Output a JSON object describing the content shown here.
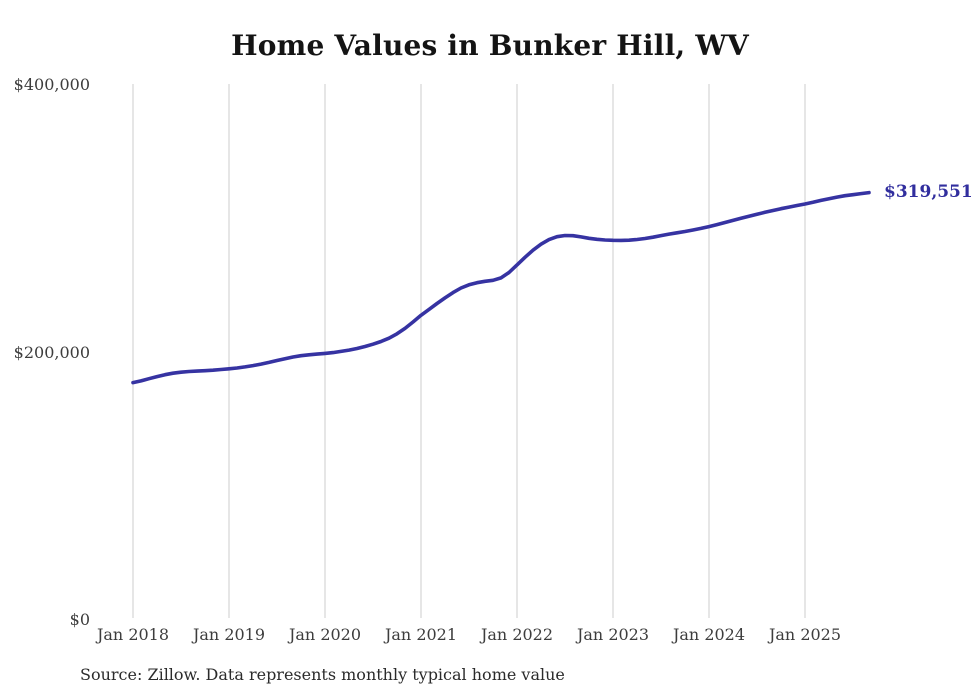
{
  "title": "Home Values in Bunker Hill, WV",
  "source_note": "Source: Zillow. Data represents monthly typical home value",
  "colors": {
    "line": "#3633a2",
    "end_label": "#312e9e",
    "grid": "#cdcdcd",
    "axis_text": "#3d3d3d",
    "title_text": "#141414"
  },
  "chart_data": {
    "type": "line",
    "title": "Home Values in Bunker Hill, WV",
    "xlabel": "",
    "ylabel": "",
    "ylim": [
      0,
      400000
    ],
    "grid": "vertical-only",
    "legend": "none",
    "start_month": "2018-01",
    "end_month": "2025-09",
    "last_value_label": "$319,551",
    "last_value": 319551,
    "y_ticks": [
      {
        "label": "$0",
        "value": 0
      },
      {
        "label": "$200,000",
        "value": 200000
      },
      {
        "label": "$400,000",
        "value": 400000
      }
    ],
    "x_ticks": [
      {
        "label": "Jan 2018",
        "month_index": 0
      },
      {
        "label": "Jan 2019",
        "month_index": 12
      },
      {
        "label": "Jan 2020",
        "month_index": 24
      },
      {
        "label": "Jan 2021",
        "month_index": 36
      },
      {
        "label": "Jan 2022",
        "month_index": 48
      },
      {
        "label": "Jan 2023",
        "month_index": 60
      },
      {
        "label": "Jan 2024",
        "month_index": 72
      },
      {
        "label": "Jan 2025",
        "month_index": 84
      }
    ],
    "series": [
      {
        "name": "Typical home value",
        "values": [
          177500,
          178800,
          180400,
          182000,
          183400,
          184500,
          185300,
          185800,
          186100,
          186400,
          186800,
          187300,
          187800,
          188400,
          189200,
          190200,
          191300,
          192600,
          194000,
          195400,
          196600,
          197600,
          198300,
          198800,
          199300,
          199900,
          200800,
          201800,
          203000,
          204500,
          206200,
          208200,
          210700,
          214000,
          218000,
          222800,
          227800,
          232200,
          236600,
          240800,
          244800,
          248200,
          250600,
          252200,
          253200,
          254000,
          255800,
          259800,
          265500,
          271200,
          276500,
          281000,
          284400,
          286600,
          287500,
          287300,
          286400,
          285400,
          284600,
          284100,
          283900,
          283800,
          284000,
          284500,
          285200,
          286200,
          287400,
          288500,
          289500,
          290500,
          291600,
          292800,
          294100,
          295600,
          297200,
          298800,
          300300,
          301800,
          303300,
          304800,
          306200,
          307500,
          308700,
          309900,
          311000,
          312300,
          313700,
          315000,
          316200,
          317200,
          318000,
          318800,
          319551
        ]
      }
    ]
  }
}
